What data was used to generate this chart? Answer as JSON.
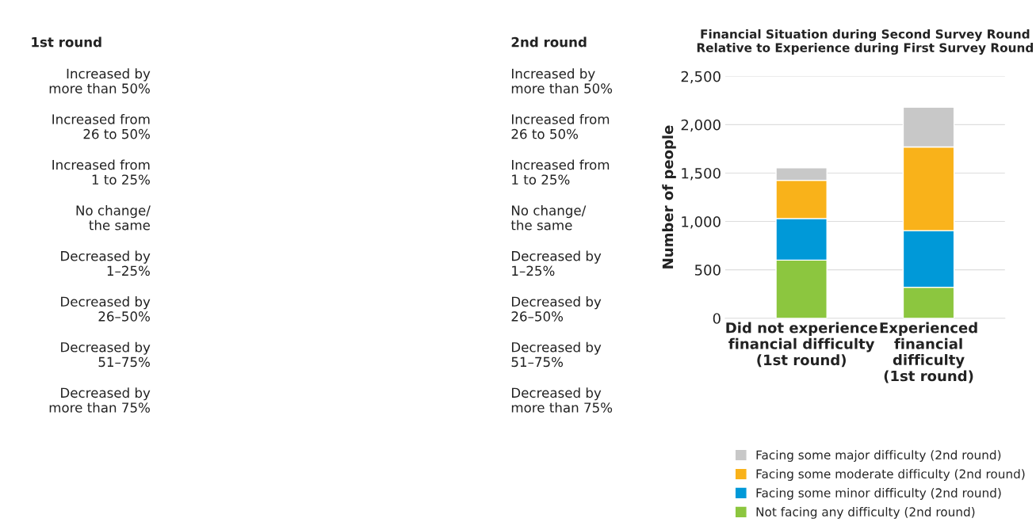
{
  "chart_data": [
    {
      "type": "other",
      "annotations": [
        "1st round",
        "2nd round",
        "Increased by\nmore than 50%",
        "Increased from\n26 to 50%",
        "Increased from\n1 to 25%",
        "No change/\nthe same",
        "Decreased by\n1–25%",
        "Decreased by\n26–50%",
        "Decreased by\n51–75%",
        "Decreased by\nmore than 75%",
        "Increased by\nmore than 50%",
        "Increased from\n26 to 50%",
        "Increased from\n1 to 25%",
        "No change/\nthe same",
        "Decreased by\n1–25%",
        "Decreased by\n26–50%",
        "Decreased by\n51–75%",
        "Decreased by\nmore than 75%"
      ]
    },
    {
      "type": "bar",
      "stacked": true,
      "title": "Financial Situation during Second Survey Round\nRelative to Experience during First Survey Round",
      "ylabel": "Number of people",
      "categories": [
        "Did not experience\nfinancial difficulty\n(1st round)",
        "Experienced\nfinancial\ndifficulty\n(1st round)"
      ],
      "series": [
        {
          "name": "Not facing any difficulty (2nd round)",
          "color": "#8cc63f",
          "values": [
            600,
            320
          ]
        },
        {
          "name": "Facing some minor difficulty (2nd round)",
          "color": "#0099d8",
          "values": [
            430,
            585
          ]
        },
        {
          "name": "Facing some moderate difficulty (2nd round)",
          "color": "#f9b21a",
          "values": [
            395,
            865
          ]
        },
        {
          "name": "Facing some major difficulty (2nd round)",
          "color": "#c8c8c8",
          "values": [
            130,
            410
          ]
        }
      ],
      "ylim": [
        0,
        2500
      ],
      "yticks": [
        {
          "value": 0,
          "label": "0"
        },
        {
          "value": 500,
          "label": "500"
        },
        {
          "value": 1000,
          "label": "1,000"
        },
        {
          "value": 1500,
          "label": "1,500"
        },
        {
          "value": 2000,
          "label": "2,000"
        },
        {
          "value": 2500,
          "label": "2,500"
        }
      ],
      "grid": "y",
      "legend": "bottom"
    }
  ]
}
